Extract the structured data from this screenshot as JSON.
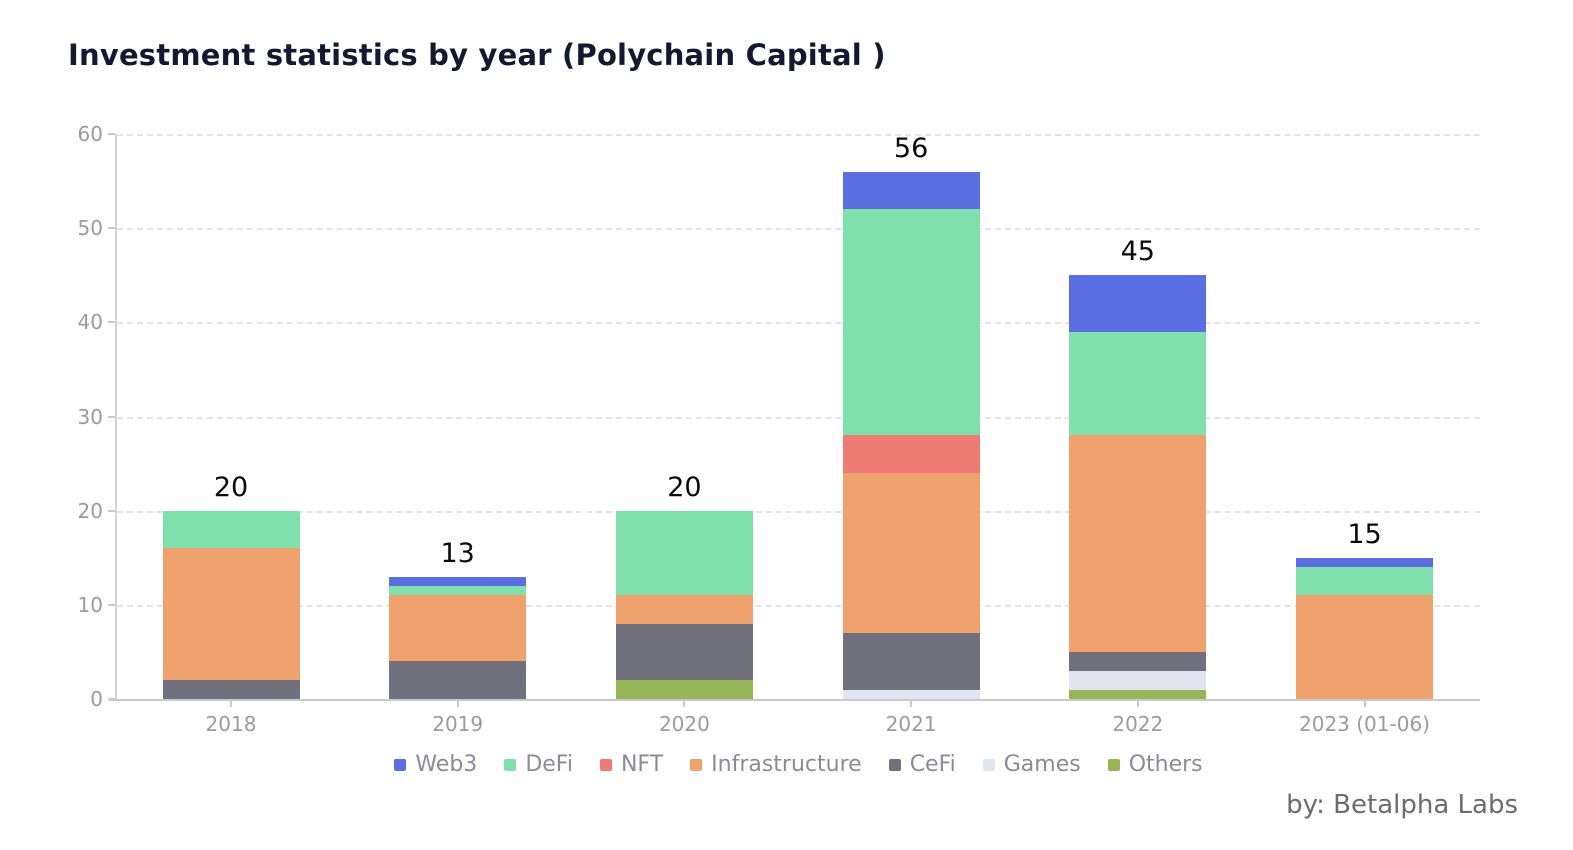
{
  "title": "Investment statistics by year (Polychain Capital )",
  "byline": "by:  Betalpha Labs",
  "chart_data": {
    "type": "bar",
    "stacked": true,
    "title": "Investment statistics by year (Polychain Capital )",
    "categories": [
      "2018",
      "2019",
      "2020",
      "2021",
      "2022",
      "2023 (01-06)"
    ],
    "totals": [
      20,
      13,
      20,
      56,
      45,
      15
    ],
    "series": [
      {
        "name": "Web3",
        "color": "#5b6ee1",
        "values": [
          0,
          1,
          0,
          4,
          6,
          1
        ]
      },
      {
        "name": "DeFi",
        "color": "#7fe0ac",
        "values": [
          4,
          1,
          9,
          24,
          11,
          3
        ]
      },
      {
        "name": "NFT",
        "color": "#ee7c74",
        "values": [
          0,
          0,
          0,
          4,
          0,
          0
        ]
      },
      {
        "name": "Infrastructure",
        "color": "#f0a26e",
        "values": [
          14,
          7,
          3,
          17,
          23,
          11
        ]
      },
      {
        "name": "CeFi",
        "color": "#71717d",
        "values": [
          2,
          4,
          6,
          6,
          2,
          0
        ]
      },
      {
        "name": "Games",
        "color": "#e2e5ef",
        "values": [
          0,
          0,
          0,
          1,
          2,
          0
        ]
      },
      {
        "name": "Others",
        "color": "#95b556",
        "values": [
          0,
          0,
          2,
          0,
          1,
          0
        ]
      }
    ],
    "stack_order_bottom_to_top": [
      "Others",
      "Games",
      "CeFi",
      "Infrastructure",
      "NFT",
      "DeFi",
      "Web3"
    ],
    "xlabel": "",
    "ylabel": "",
    "y_axis": {
      "min": 0,
      "max": 60,
      "step": 10,
      "ticks": [
        0,
        10,
        20,
        30,
        40,
        50,
        60
      ]
    },
    "grid": "horizontal-dashed",
    "legend_position": "bottom-center"
  }
}
